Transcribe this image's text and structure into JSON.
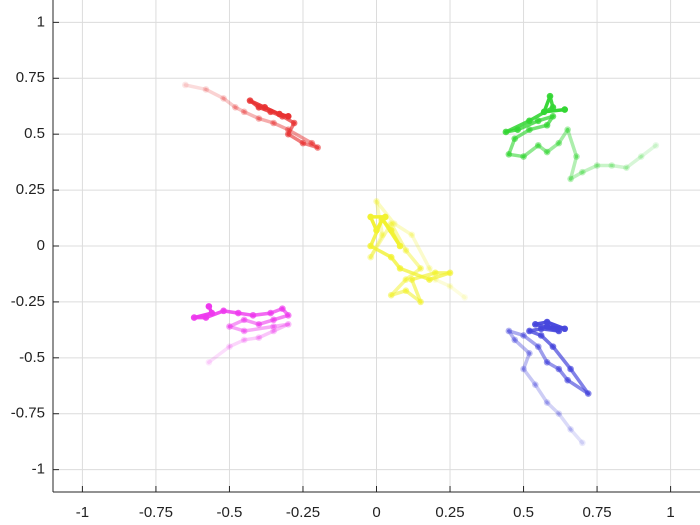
{
  "chart_data": {
    "type": "scatter",
    "xlim": [
      -1.1,
      1.1
    ],
    "ylim": [
      -1.1,
      1.1
    ],
    "xticks": [
      -1,
      -0.75,
      -0.5,
      -0.25,
      0,
      0.25,
      0.5,
      0.75,
      1
    ],
    "yticks": [
      1,
      0.75,
      0.5,
      0.25,
      0,
      -0.25,
      -0.5,
      -0.75,
      -1
    ],
    "grid": true,
    "series": [
      {
        "color": "#e83232",
        "x": [
          -0.65,
          -0.58,
          -0.52,
          -0.48,
          -0.45,
          -0.4,
          -0.35,
          -0.3,
          -0.22,
          -0.2,
          -0.25,
          -0.3,
          -0.28,
          -0.32,
          -0.36,
          -0.4,
          -0.43,
          -0.38,
          -0.33,
          -0.3
        ],
        "y": [
          0.72,
          0.7,
          0.66,
          0.62,
          0.6,
          0.57,
          0.55,
          0.52,
          0.46,
          0.44,
          0.46,
          0.5,
          0.55,
          0.58,
          0.6,
          0.62,
          0.65,
          0.62,
          0.59,
          0.58
        ]
      },
      {
        "color": "#33d633",
        "x": [
          0.95,
          0.9,
          0.85,
          0.8,
          0.75,
          0.7,
          0.66,
          0.68,
          0.65,
          0.62,
          0.58,
          0.55,
          0.5,
          0.45,
          0.47,
          0.52,
          0.58,
          0.6,
          0.55,
          0.48,
          0.44,
          0.52,
          0.6,
          0.59,
          0.57,
          0.64
        ],
        "y": [
          0.45,
          0.4,
          0.35,
          0.36,
          0.36,
          0.33,
          0.3,
          0.4,
          0.52,
          0.46,
          0.42,
          0.45,
          0.4,
          0.41,
          0.48,
          0.52,
          0.54,
          0.58,
          0.56,
          0.52,
          0.51,
          0.56,
          0.62,
          0.67,
          0.6,
          0.61
        ]
      },
      {
        "color": "#f2f230",
        "x": [
          0.3,
          0.25,
          0.2,
          0.18,
          0.12,
          0.06,
          0.0,
          0.02,
          -0.02,
          0.05,
          0.1,
          0.15,
          0.1,
          0.05,
          0.1,
          0.15,
          0.12,
          0.2,
          0.25,
          0.18,
          0.08,
          0.05,
          -0.02,
          0.02,
          0.05,
          0.08,
          0.02,
          0.0,
          -0.02,
          0.03
        ],
        "y": [
          -0.23,
          -0.18,
          -0.15,
          -0.1,
          0.05,
          0.1,
          0.2,
          0.05,
          -0.05,
          0.1,
          -0.02,
          -0.1,
          -0.15,
          -0.22,
          -0.2,
          -0.25,
          -0.15,
          -0.12,
          -0.12,
          -0.15,
          -0.1,
          -0.05,
          0.0,
          0.12,
          0.07,
          0.0,
          0.12,
          0.07,
          0.13,
          0.13
        ]
      },
      {
        "color": "#ee38ee",
        "x": [
          -0.57,
          -0.5,
          -0.45,
          -0.4,
          -0.35,
          -0.3,
          -0.35,
          -0.45,
          -0.5,
          -0.45,
          -0.4,
          -0.35,
          -0.3,
          -0.32,
          -0.36,
          -0.42,
          -0.47,
          -0.52,
          -0.58,
          -0.62,
          -0.56,
          -0.57
        ],
        "y": [
          -0.52,
          -0.45,
          -0.42,
          -0.41,
          -0.38,
          -0.35,
          -0.36,
          -0.38,
          -0.36,
          -0.33,
          -0.35,
          -0.33,
          -0.31,
          -0.28,
          -0.3,
          -0.31,
          -0.3,
          -0.29,
          -0.32,
          -0.32,
          -0.3,
          -0.27
        ]
      },
      {
        "color": "#4646dc",
        "x": [
          0.7,
          0.66,
          0.62,
          0.58,
          0.54,
          0.5,
          0.52,
          0.47,
          0.45,
          0.5,
          0.55,
          0.58,
          0.62,
          0.65,
          0.72,
          0.66,
          0.6,
          0.56,
          0.52,
          0.56,
          0.62,
          0.54,
          0.58,
          0.64,
          0.58
        ],
        "y": [
          -0.88,
          -0.82,
          -0.75,
          -0.7,
          -0.62,
          -0.55,
          -0.48,
          -0.42,
          -0.38,
          -0.4,
          -0.45,
          -0.52,
          -0.55,
          -0.6,
          -0.66,
          -0.55,
          -0.45,
          -0.4,
          -0.38,
          -0.37,
          -0.38,
          -0.35,
          -0.34,
          -0.37,
          -0.36
        ]
      }
    ]
  }
}
